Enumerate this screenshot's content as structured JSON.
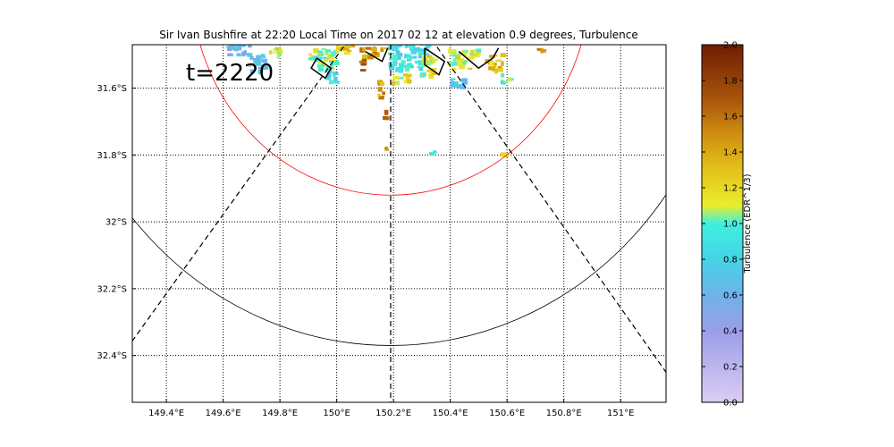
{
  "title": "Sir Ivan Bushfire at 22:20 Local Time on 2017 02 12 at elevation 0.9 degrees, Turbulence",
  "time_label": "t=2220",
  "map": {
    "lon_ticks": [
      {
        "value": 149.4,
        "label": "149.4°E"
      },
      {
        "value": 149.6,
        "label": "149.6°E"
      },
      {
        "value": 149.8,
        "label": "149.8°E"
      },
      {
        "value": 150.0,
        "label": "150°E"
      },
      {
        "value": 150.2,
        "label": "150.2°E"
      },
      {
        "value": 150.4,
        "label": "150.4°E"
      },
      {
        "value": 150.6,
        "label": "150.6°E"
      },
      {
        "value": 150.8,
        "label": "150.8°E"
      },
      {
        "value": 151.0,
        "label": "151°E"
      }
    ],
    "lat_ticks": [
      {
        "value": -31.6,
        "label": "31.6°S"
      },
      {
        "value": -31.8,
        "label": "31.8°S"
      },
      {
        "value": -32.0,
        "label": "32°S"
      },
      {
        "value": -32.2,
        "label": "32.2°S"
      },
      {
        "value": -32.4,
        "label": "32.4°S"
      }
    ],
    "lon_range": [
      149.28,
      151.16
    ],
    "lat_range": [
      -32.54,
      -31.47
    ],
    "grid": true,
    "radar": {
      "lon": 150.19,
      "lat": -31.28
    },
    "range_rings": [
      {
        "radius_deg": 0.64,
        "color": "#ff0000"
      },
      {
        "radius_deg": 1.09,
        "color": "#000000"
      }
    ],
    "azimuth_lines": [
      {
        "end": [
          149.26,
          -32.38
        ]
      },
      {
        "end": [
          150.19,
          -32.54
        ]
      },
      {
        "end": [
          151.16,
          -32.45
        ]
      }
    ]
  },
  "colorbar": {
    "label": "Turbulence (EDR^1/3)",
    "ticks": [
      "0.0",
      "0.2",
      "0.4",
      "0.6",
      "0.8",
      "1.0",
      "1.2",
      "1.4",
      "1.6",
      "1.8",
      "2.0"
    ],
    "range": [
      0,
      2.0
    ],
    "stops": [
      {
        "value": 0.0,
        "color": "#dccdf2"
      },
      {
        "value": 0.4,
        "color": "#9a9ee8"
      },
      {
        "value": 0.6,
        "color": "#6fb2ea"
      },
      {
        "value": 0.8,
        "color": "#45d4e6"
      },
      {
        "value": 1.0,
        "color": "#3ef0dd"
      },
      {
        "value": 1.1,
        "color": "#e8ee2e"
      },
      {
        "value": 1.3,
        "color": "#e4c21a"
      },
      {
        "value": 1.5,
        "color": "#cf8e0f"
      },
      {
        "value": 1.7,
        "color": "#a8540a"
      },
      {
        "value": 2.0,
        "color": "#701c04"
      }
    ]
  },
  "echoes": [
    {
      "lon": 149.65,
      "lat": -31.48,
      "w": 0.08,
      "h": 0.04,
      "value": 0.6
    },
    {
      "lon": 149.72,
      "lat": -31.52,
      "w": 0.06,
      "h": 0.05,
      "value": 0.65
    },
    {
      "lon": 149.78,
      "lat": -31.49,
      "w": 0.04,
      "h": 0.03,
      "value": 1.2
    },
    {
      "lon": 149.95,
      "lat": -31.51,
      "w": 0.1,
      "h": 0.06,
      "value": 1.05
    },
    {
      "lon": 149.98,
      "lat": -31.56,
      "w": 0.04,
      "h": 0.04,
      "value": 0.85
    },
    {
      "lon": 150.02,
      "lat": -31.48,
      "w": 0.06,
      "h": 0.03,
      "value": 1.3
    },
    {
      "lon": 150.12,
      "lat": -31.49,
      "w": 0.08,
      "h": 0.03,
      "value": 1.45
    },
    {
      "lon": 150.25,
      "lat": -31.5,
      "w": 0.14,
      "h": 0.08,
      "value": 0.85
    },
    {
      "lon": 150.22,
      "lat": -31.57,
      "w": 0.06,
      "h": 0.03,
      "value": 1.2
    },
    {
      "lon": 150.32,
      "lat": -31.53,
      "w": 0.06,
      "h": 0.06,
      "value": 1.15
    },
    {
      "lon": 150.44,
      "lat": -31.51,
      "w": 0.1,
      "h": 0.06,
      "value": 1.15
    },
    {
      "lon": 150.42,
      "lat": -31.58,
      "w": 0.06,
      "h": 0.03,
      "value": 0.7
    },
    {
      "lon": 150.55,
      "lat": -31.52,
      "w": 0.06,
      "h": 0.05,
      "value": 1.3
    },
    {
      "lon": 150.59,
      "lat": -31.57,
      "w": 0.03,
      "h": 0.03,
      "value": 0.9
    },
    {
      "lon": 150.08,
      "lat": -31.53,
      "w": 0.02,
      "h": 0.04,
      "value": 1.7
    },
    {
      "lon": 150.15,
      "lat": -31.6,
      "w": 0.02,
      "h": 0.05,
      "value": 1.45
    },
    {
      "lon": 150.17,
      "lat": -31.67,
      "w": 0.02,
      "h": 0.03,
      "value": 1.6
    },
    {
      "lon": 150.17,
      "lat": -31.78,
      "w": 0.01,
      "h": 0.01,
      "value": 1.5
    },
    {
      "lon": 150.33,
      "lat": -31.79,
      "w": 0.02,
      "h": 0.01,
      "value": 0.85
    },
    {
      "lon": 150.58,
      "lat": -31.79,
      "w": 0.02,
      "h": 0.01,
      "value": 1.1
    },
    {
      "lon": 150.72,
      "lat": -31.48,
      "w": 0.03,
      "h": 0.01,
      "value": 1.6
    }
  ],
  "contours": [
    {
      "points": [
        [
          149.93,
          -31.51
        ],
        [
          149.98,
          -31.54
        ],
        [
          149.96,
          -31.57
        ],
        [
          149.91,
          -31.54
        ],
        [
          149.93,
          -31.51
        ]
      ]
    },
    {
      "points": [
        [
          150.1,
          -31.49
        ],
        [
          150.16,
          -31.52
        ],
        [
          150.18,
          -31.48
        ]
      ]
    },
    {
      "points": [
        [
          150.31,
          -31.48
        ],
        [
          150.38,
          -31.52
        ],
        [
          150.36,
          -31.56
        ],
        [
          150.31,
          -31.53
        ],
        [
          150.31,
          -31.48
        ]
      ]
    },
    {
      "points": [
        [
          150.43,
          -31.49
        ],
        [
          150.5,
          -31.54
        ],
        [
          150.55,
          -31.51
        ],
        [
          150.57,
          -31.48
        ]
      ]
    }
  ]
}
